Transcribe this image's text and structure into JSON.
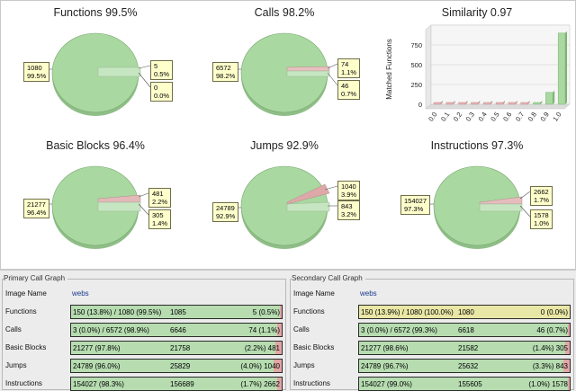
{
  "colors": {
    "match": "#a9d8a0",
    "unmatched": "#e0a0a0",
    "callout": "#ffffcc",
    "bar_yellow": "#e9e7a6"
  },
  "charts": {
    "functions": {
      "title": "Functions 99.5%",
      "left_value": "1080",
      "left_pct": "99.5%",
      "right1_value": "5",
      "right1_pct": "0.5%",
      "right2_value": "0",
      "right2_pct": "0.0%"
    },
    "calls": {
      "title": "Calls 98.2%",
      "left_value": "6572",
      "left_pct": "98.2%",
      "right1_value": "74",
      "right1_pct": "1.1%",
      "right2_value": "46",
      "right2_pct": "0.7%"
    },
    "basic_blocks": {
      "title": "Basic Blocks 96.4%",
      "left_value": "21277",
      "left_pct": "96.4%",
      "right1_value": "481",
      "right1_pct": "2.2%",
      "right2_value": "305",
      "right2_pct": "1.4%"
    },
    "jumps": {
      "title": "Jumps 92.9%",
      "left_value": "24789",
      "left_pct": "92.9%",
      "right1_value": "1040",
      "right1_pct": "3.9%",
      "right2_value": "843",
      "right2_pct": "3.2%"
    },
    "instructions": {
      "title": "Instructions 97.3%",
      "left_value": "154027",
      "left_pct": "97.3%",
      "right1_value": "2662",
      "right1_pct": "1.7%",
      "right2_value": "1578",
      "right2_pct": "1.0%"
    }
  },
  "chart_data": [
    {
      "type": "pie",
      "title": "Functions 99.5%",
      "labels": [
        "1080",
        "5",
        "0"
      ],
      "values": [
        1080,
        5,
        0
      ],
      "percentages": [
        99.5,
        0.5,
        0.0
      ]
    },
    {
      "type": "pie",
      "title": "Calls 98.2%",
      "labels": [
        "6572",
        "74",
        "46"
      ],
      "values": [
        6572,
        74,
        46
      ],
      "percentages": [
        98.2,
        1.1,
        0.7
      ]
    },
    {
      "type": "bar",
      "title": "Similarity 0.97",
      "ylabel": "Matched Functions",
      "categories": [
        "0.0",
        "0.1",
        "0.2",
        "0.3",
        "0.4",
        "0.5",
        "0.6",
        "0.7",
        "0.8",
        "0.9",
        "1.0"
      ],
      "values": [
        5,
        3,
        2,
        2,
        1,
        1,
        2,
        2,
        8,
        150,
        900
      ],
      "ylim": [
        0,
        1000
      ],
      "yticks": [
        "0",
        "250",
        "500",
        "750"
      ]
    },
    {
      "type": "pie",
      "title": "Basic Blocks 96.4%",
      "labels": [
        "21277",
        "481",
        "305"
      ],
      "values": [
        21277,
        481,
        305
      ],
      "percentages": [
        96.4,
        2.2,
        1.4
      ]
    },
    {
      "type": "pie",
      "title": "Jumps 92.9%",
      "labels": [
        "24789",
        "1040",
        "843"
      ],
      "values": [
        24789,
        1040,
        843
      ],
      "percentages": [
        92.9,
        3.9,
        3.2
      ]
    },
    {
      "type": "pie",
      "title": "Instructions 97.3%",
      "labels": [
        "154027",
        "2662",
        "1578"
      ],
      "values": [
        154027,
        2662,
        1578
      ],
      "percentages": [
        97.3,
        1.7,
        1.0
      ]
    }
  ],
  "primary": {
    "title": "Primary Call Graph",
    "image_label": "Image Name",
    "image_value": "webs",
    "rows": [
      {
        "label": "Functions",
        "t1": "150 (13.8%) / 1080 (99.5%)",
        "t2": "1085",
        "t3": "5 (0.5%)",
        "frac": 0.01
      },
      {
        "label": "Calls",
        "t1": "3 (0.0%) / 6572 (98.9%)",
        "t2": "6646",
        "t3": "74 (1.1%)",
        "frac": 0.02
      },
      {
        "label": "Basic Blocks",
        "t1": "21277 (97.8%)",
        "t2": "21758",
        "t3": "(2.2%) 481",
        "frac": 0.03
      },
      {
        "label": "Jumps",
        "t1": "24789 (96.0%)",
        "t2": "25829",
        "t3": "(4.0%) 1040",
        "frac": 0.04
      },
      {
        "label": "Instructions",
        "t1": "154027 (98.3%)",
        "t2": "156689",
        "t3": "(1.7%) 2662",
        "frac": 0.02
      }
    ]
  },
  "secondary": {
    "title": "Secondary Call Graph",
    "image_label": "Image Name",
    "image_value": "webs",
    "rows": [
      {
        "label": "Functions",
        "t1": "150 (13.9%) / 1080 (100.0%)",
        "t2": "1080",
        "t3": "0 (0.0%)",
        "frac": 0.0,
        "yellow": true
      },
      {
        "label": "Calls",
        "t1": "3 (0.0%) / 6572 (99.3%)",
        "t2": "6618",
        "t3": "46 (0.7%)",
        "frac": 0.01
      },
      {
        "label": "Basic Blocks",
        "t1": "21277 (98.6%)",
        "t2": "21582",
        "t3": "(1.4%) 305",
        "frac": 0.02
      },
      {
        "label": "Jumps",
        "t1": "24789 (96.7%)",
        "t2": "25632",
        "t3": "(3.3%) 843",
        "frac": 0.03
      },
      {
        "label": "Instructions",
        "t1": "154027 (99.0%)",
        "t2": "155605",
        "t3": "(1.0%) 1578",
        "frac": 0.01
      }
    ]
  }
}
